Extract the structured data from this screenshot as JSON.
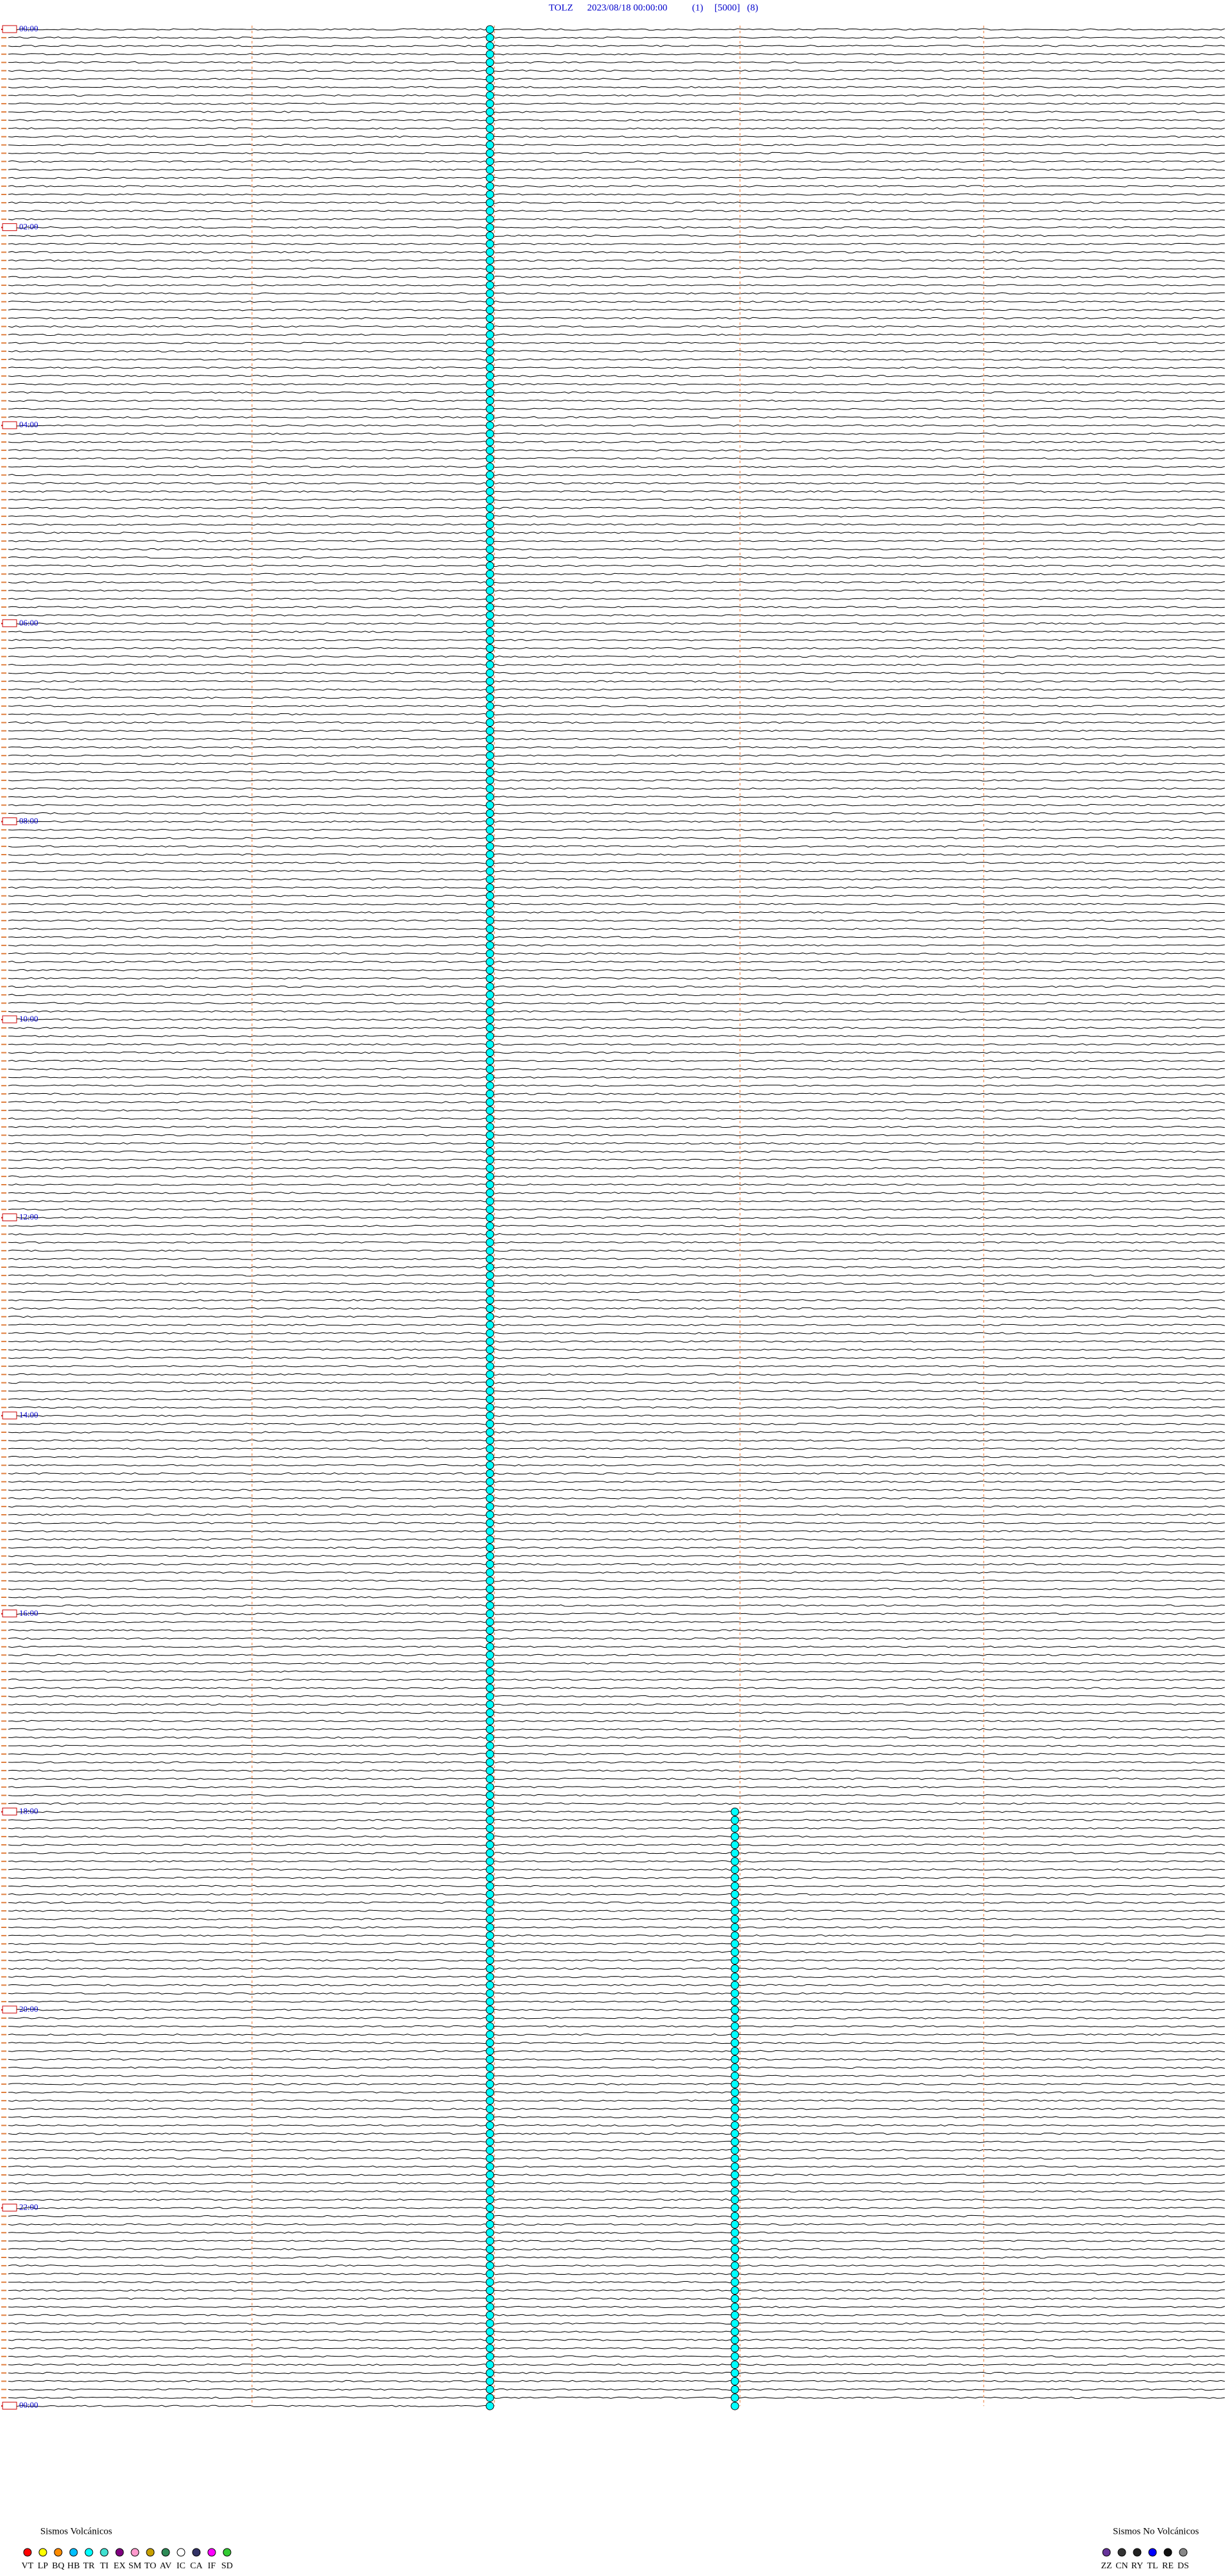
{
  "header": {
    "station": "TOLZ",
    "datetime": "2023/08/18 00:00:00",
    "channel": "(1)",
    "scale": "[5000]",
    "filter": "(8)"
  },
  "hour_labels": [
    "00:00",
    "02:00",
    "04:00",
    "06:00",
    "08:00",
    "10:00",
    "12:00",
    "14:00",
    "16:00",
    "18:00",
    "20:00",
    "22:00",
    "00:00"
  ],
  "legend_volcanic": {
    "title": "Sismos Volcánicos",
    "items": [
      {
        "code": "VT",
        "color": "#ff0000"
      },
      {
        "code": "LP",
        "color": "#ffff00"
      },
      {
        "code": "BQ",
        "color": "#ff8c00"
      },
      {
        "code": "HB",
        "color": "#00bfff"
      },
      {
        "code": "TR",
        "color": "#00ffff"
      },
      {
        "code": "TI",
        "color": "#40e0d0"
      },
      {
        "code": "EX",
        "color": "#800080"
      },
      {
        "code": "SM",
        "color": "#ff99cc"
      },
      {
        "code": "TO",
        "color": "#c8a000"
      },
      {
        "code": "AV",
        "color": "#2e8b57"
      },
      {
        "code": "IC",
        "color": "#ffffff"
      },
      {
        "code": "CA",
        "color": "#333366"
      },
      {
        "code": "IF",
        "color": "#ff00ff"
      },
      {
        "code": "SD",
        "color": "#33cc33"
      }
    ]
  },
  "legend_non_volcanic": {
    "title": "Sismos No Volcánicos",
    "items": [
      {
        "code": "ZZ",
        "color": "#663399"
      },
      {
        "code": "CN",
        "color": "#333333"
      },
      {
        "code": "RY",
        "color": "#222222"
      },
      {
        "code": "TL",
        "color": "#0000ff"
      },
      {
        "code": "RE",
        "color": "#111111"
      },
      {
        "code": "DS",
        "color": "#888888"
      }
    ]
  }
}
